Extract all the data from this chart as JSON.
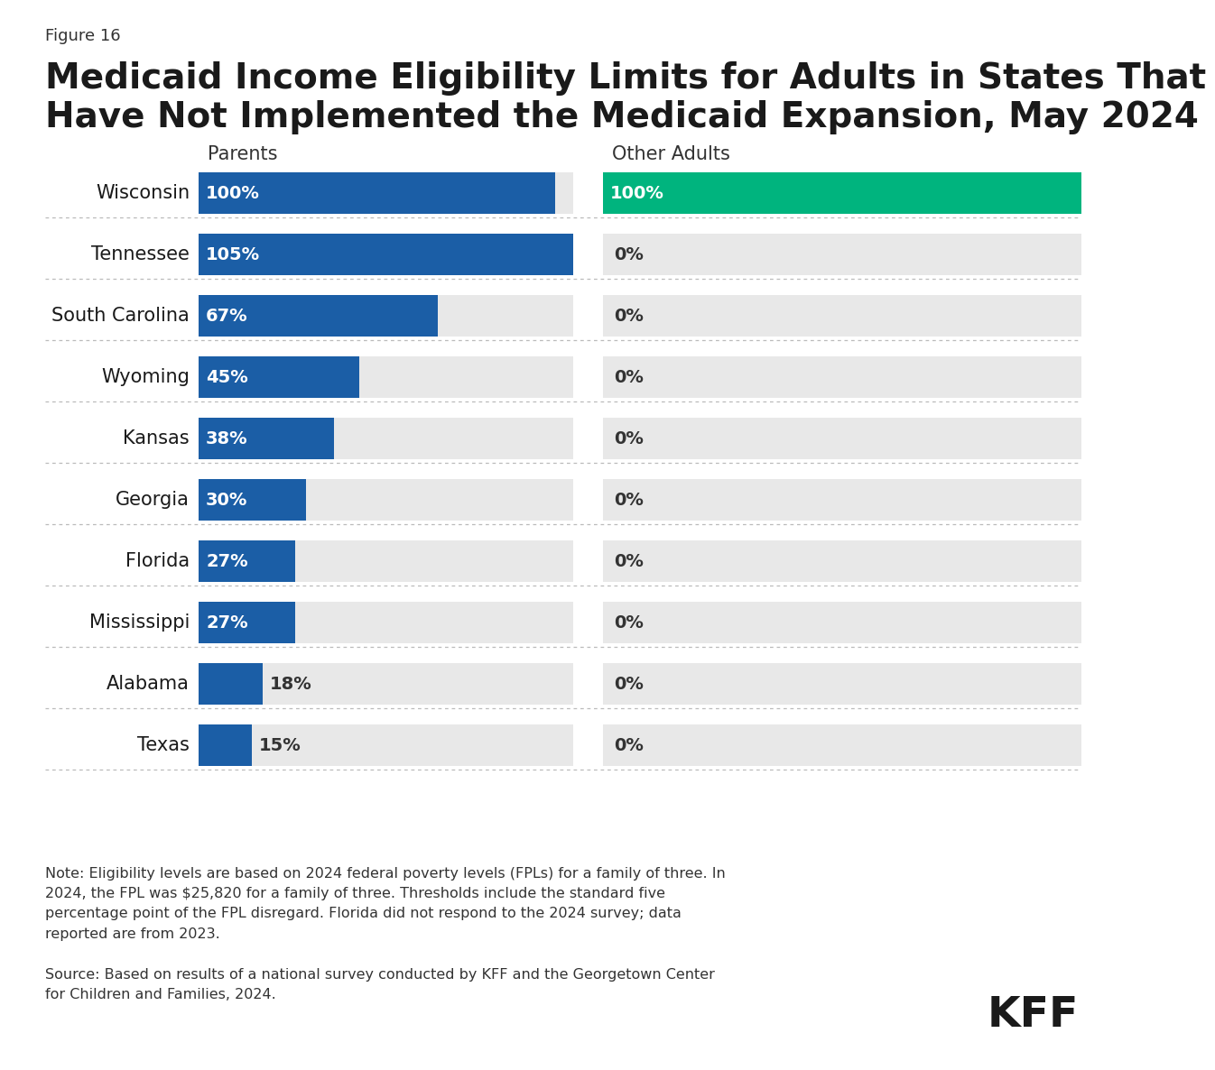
{
  "figure_label": "Figure 16",
  "title_line1": "Medicaid Income Eligibility Limits for Adults in States That",
  "title_line2": "Have Not Implemented the Medicaid Expansion, May 2024",
  "col_header_parents": "Parents",
  "col_header_other": "Other Adults",
  "states": [
    "Wisconsin",
    "Tennessee",
    "South Carolina",
    "Wyoming",
    "Kansas",
    "Georgia",
    "Florida",
    "Mississippi",
    "Alabama",
    "Texas"
  ],
  "parents_pct": [
    100,
    105,
    67,
    45,
    38,
    30,
    27,
    27,
    18,
    15
  ],
  "other_pct": [
    100,
    0,
    0,
    0,
    0,
    0,
    0,
    0,
    0,
    0
  ],
  "parents_color": "#1B5EA6",
  "other_color_nonzero": "#00B47E",
  "other_color_zero": "#E8E8E8",
  "parents_bg_color": "#E8E8E8",
  "bar_text_color_inside": "#FFFFFF",
  "bar_text_color_outside": "#333333",
  "max_value": 105,
  "note_text": "Note: Eligibility levels are based on 2024 federal poverty levels (FPLs) for a family of three. In\n2024, the FPL was $25,820 for a family of three. Thresholds include the standard five\npercentage point of the FPL disregard. Florida did not respond to the 2024 survey; data\nreported are from 2023.",
  "source_text": "Source: Based on results of a national survey conducted by KFF and the Georgetown Center\nfor Children and Families, 2024.",
  "bg_color": "#FFFFFF",
  "state_font_size": 15,
  "pct_font_size": 14,
  "header_font_size": 15,
  "title_font_size": 28,
  "figure_label_font_size": 13
}
